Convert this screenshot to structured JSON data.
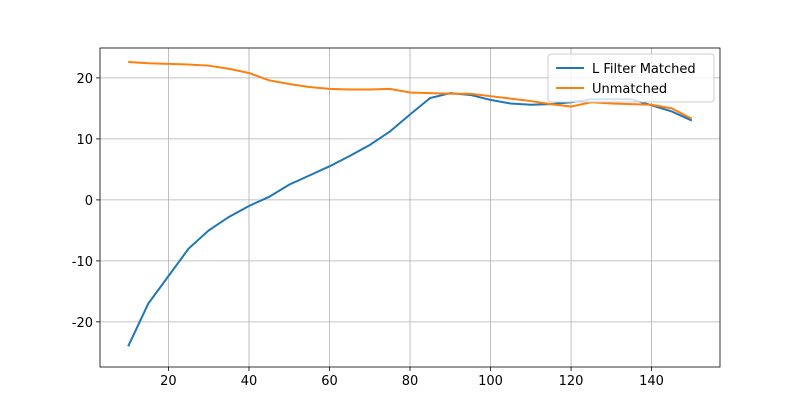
{
  "chart_data": {
    "type": "line",
    "x": [
      10,
      15,
      20,
      25,
      30,
      35,
      40,
      45,
      50,
      55,
      60,
      65,
      70,
      75,
      80,
      85,
      90,
      95,
      100,
      105,
      110,
      115,
      120,
      125,
      130,
      135,
      140,
      145,
      150
    ],
    "series": [
      {
        "name": "L Filter Matched",
        "color": "#1f77b4",
        "values": [
          -24,
          -17,
          -12.5,
          -8,
          -5,
          -2.8,
          -1,
          0.5,
          2.5,
          4,
          5.5,
          7.2,
          9,
          11.2,
          14,
          16.7,
          17.5,
          17.2,
          16.4,
          15.8,
          15.6,
          15.7,
          16,
          16.5,
          16.5,
          16.5,
          15.5,
          14.5,
          13
        ]
      },
      {
        "name": "Unmatched",
        "color": "#ff7f0e",
        "values": [
          22.6,
          22.4,
          22.3,
          22.2,
          22,
          21.5,
          20.8,
          19.6,
          19,
          18.5,
          18.2,
          18.1,
          18.1,
          18.2,
          17.6,
          17.5,
          17.4,
          17.4,
          17,
          16.6,
          16.2,
          15.7,
          15.3,
          16,
          15.8,
          15.7,
          15.6,
          15,
          13.3
        ]
      }
    ],
    "xlim": [
      3,
      157
    ],
    "xticks": [
      20,
      40,
      60,
      80,
      100,
      120,
      140
    ],
    "ylim": [
      -27.4,
      24.9
    ],
    "yticks": [
      -20,
      -10,
      0,
      10,
      20
    ],
    "grid": true,
    "legend": "upper right"
  }
}
